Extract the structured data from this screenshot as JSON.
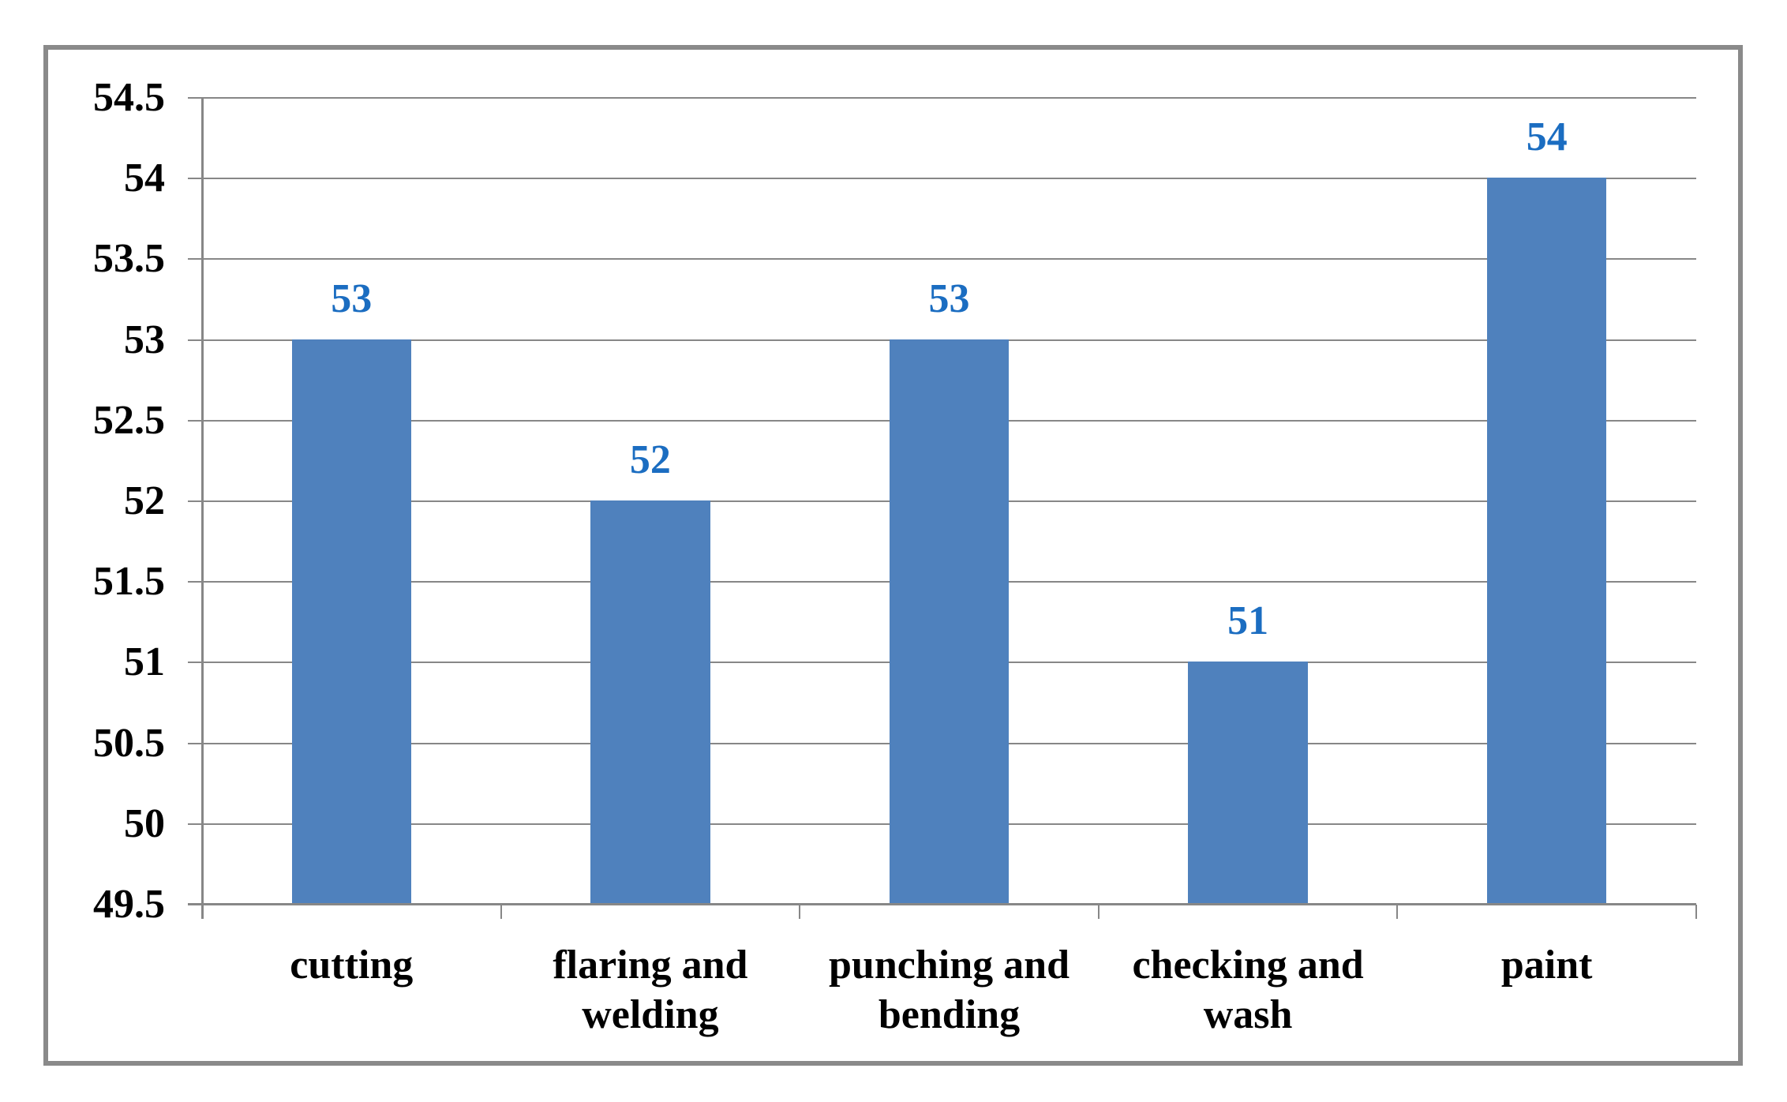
{
  "chart_data": {
    "type": "bar",
    "title": "",
    "xlabel": "",
    "ylabel": "",
    "categories": [
      "cutting",
      "flaring and welding",
      "punching and bending",
      "checking and wash",
      "paint"
    ],
    "values": [
      53,
      52,
      53,
      51,
      54
    ],
    "data_labels": [
      "53",
      "52",
      "53",
      "51",
      "54"
    ],
    "ylim": [
      49.5,
      54.5
    ],
    "y_tick_step": 0.5,
    "y_tick_labels_top_to_bottom": [
      "54.5",
      "54",
      "53.5",
      "53",
      "52.5",
      "52",
      "51.5",
      "51",
      "50.5",
      "50",
      "49.5"
    ],
    "grid": true,
    "legend": "none",
    "colors": {
      "bar_fill": "#4f81bd",
      "data_label": "#1b6dc1",
      "axis_text": "#000000",
      "gridline": "#878787",
      "frame_border": "#8a8a8a",
      "background": "#ffffff"
    }
  }
}
